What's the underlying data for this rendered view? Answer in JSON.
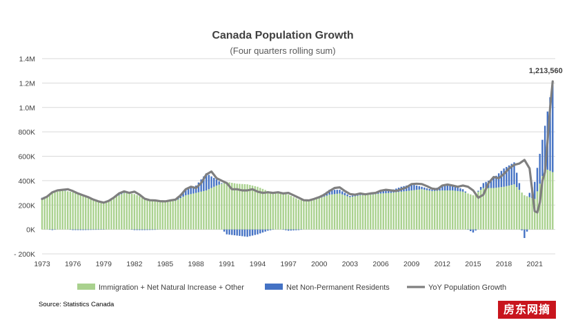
{
  "colors": {
    "immigration": "#a9d18e",
    "npr": "#4472c4",
    "yoy": "#7f7f7f",
    "grid": "#d9d9d9",
    "watermark_bg": "#c8151d"
  },
  "source": "Source: Statistics Canada",
  "watermark": "房东网摘",
  "chart_data": {
    "type": "bar",
    "title": "Canada Population Growth",
    "subtitle": "(Four quarters rolling sum)",
    "ylim": [
      -200000,
      1400000
    ],
    "yticks": [
      -200000,
      0,
      200000,
      400000,
      600000,
      800000,
      1000000,
      1200000,
      1400000
    ],
    "ytick_labels": [
      "- 200K",
      "0K",
      "200K",
      "400K",
      "600K",
      "800K",
      "1.0M",
      "1.2M",
      "1.4M"
    ],
    "xlim": [
      1973,
      2023
    ],
    "xticks": [
      "1973",
      "1976",
      "1979",
      "1982",
      "1985",
      "1988",
      "1991",
      "1994",
      "1997",
      "2000",
      "2003",
      "2006",
      "2009",
      "2012",
      "2015",
      "2018",
      "2021"
    ],
    "grid": "horizontal",
    "legend_position": "bottom",
    "annotation": {
      "x": 2022.75,
      "y": 1213560,
      "label": "1,213,560"
    },
    "series": [
      {
        "name": "Immigration + Net Natural Increase + Other",
        "kind": "bar",
        "points": [
          [
            1973,
            255000
          ],
          [
            1974,
            300000
          ],
          [
            1975,
            320000
          ],
          [
            1976,
            305000
          ],
          [
            1977,
            280000
          ],
          [
            1978,
            240000
          ],
          [
            1979,
            225000
          ],
          [
            1980,
            260000
          ],
          [
            1981,
            300000
          ],
          [
            1982,
            290000
          ],
          [
            1983,
            255000
          ],
          [
            1984,
            240000
          ],
          [
            1985,
            230000
          ],
          [
            1986,
            235000
          ],
          [
            1987,
            280000
          ],
          [
            1988,
            300000
          ],
          [
            1989,
            320000
          ],
          [
            1990,
            360000
          ],
          [
            1991,
            390000
          ],
          [
            1992,
            375000
          ],
          [
            1993,
            370000
          ],
          [
            1994,
            350000
          ],
          [
            1995,
            315000
          ],
          [
            1996,
            300000
          ],
          [
            1997,
            285000
          ],
          [
            1998,
            245000
          ],
          [
            1999,
            235000
          ],
          [
            2000,
            255000
          ],
          [
            2001,
            285000
          ],
          [
            2002,
            295000
          ],
          [
            2003,
            265000
          ],
          [
            2004,
            280000
          ],
          [
            2005,
            285000
          ],
          [
            2006,
            295000
          ],
          [
            2007,
            300000
          ],
          [
            2008,
            310000
          ],
          [
            2009,
            320000
          ],
          [
            2010,
            330000
          ],
          [
            2011,
            315000
          ],
          [
            2012,
            320000
          ],
          [
            2013,
            320000
          ],
          [
            2014,
            310000
          ],
          [
            2015,
            280000
          ],
          [
            2016,
            340000
          ],
          [
            2017,
            340000
          ],
          [
            2018,
            350000
          ],
          [
            2019,
            370000
          ],
          [
            2020,
            280000
          ],
          [
            2021,
            250000
          ],
          [
            2022,
            500000
          ],
          [
            2022.75,
            470000
          ]
        ]
      },
      {
        "name": "Net Non-Permanent Residents",
        "kind": "bar",
        "points": [
          [
            1973,
            5000
          ],
          [
            1974,
            -5000
          ],
          [
            1975,
            5000
          ],
          [
            1976,
            -5000
          ],
          [
            1977,
            -5000
          ],
          [
            1978,
            -3000
          ],
          [
            1979,
            -2000
          ],
          [
            1980,
            5000
          ],
          [
            1981,
            5000
          ],
          [
            1982,
            -5000
          ],
          [
            1983,
            -5000
          ],
          [
            1984,
            -3000
          ],
          [
            1985,
            5000
          ],
          [
            1986,
            15000
          ],
          [
            1987,
            50000
          ],
          [
            1988,
            60000
          ],
          [
            1989,
            140000
          ],
          [
            1990,
            50000
          ],
          [
            1991,
            -40000
          ],
          [
            1992,
            -50000
          ],
          [
            1993,
            -60000
          ],
          [
            1994,
            -40000
          ],
          [
            1995,
            -10000
          ],
          [
            1996,
            5000
          ],
          [
            1997,
            -10000
          ],
          [
            1998,
            -5000
          ],
          [
            1999,
            5000
          ],
          [
            2000,
            10000
          ],
          [
            2001,
            40000
          ],
          [
            2002,
            30000
          ],
          [
            2003,
            10000
          ],
          [
            2004,
            5000
          ],
          [
            2005,
            5000
          ],
          [
            2006,
            20000
          ],
          [
            2007,
            20000
          ],
          [
            2008,
            40000
          ],
          [
            2009,
            50000
          ],
          [
            2010,
            20000
          ],
          [
            2011,
            10000
          ],
          [
            2012,
            40000
          ],
          [
            2013,
            40000
          ],
          [
            2014,
            20000
          ],
          [
            2015,
            -25000
          ],
          [
            2016,
            40000
          ],
          [
            2017,
            80000
          ],
          [
            2018,
            150000
          ],
          [
            2019,
            180000
          ],
          [
            2020,
            -70000
          ],
          [
            2021,
            140000
          ],
          [
            2022,
            350000
          ],
          [
            2022.75,
            730000
          ]
        ]
      },
      {
        "name": "YoY Population Growth",
        "kind": "line",
        "points": [
          [
            1973,
            250000
          ],
          [
            1973.5,
            270000
          ],
          [
            1974,
            305000
          ],
          [
            1974.5,
            320000
          ],
          [
            1975,
            325000
          ],
          [
            1975.5,
            330000
          ],
          [
            1976,
            315000
          ],
          [
            1976.5,
            295000
          ],
          [
            1977,
            280000
          ],
          [
            1977.5,
            265000
          ],
          [
            1978,
            245000
          ],
          [
            1978.5,
            230000
          ],
          [
            1979,
            220000
          ],
          [
            1979.5,
            235000
          ],
          [
            1980,
            262000
          ],
          [
            1980.5,
            295000
          ],
          [
            1981,
            312000
          ],
          [
            1981.5,
            300000
          ],
          [
            1982,
            310000
          ],
          [
            1982.5,
            285000
          ],
          [
            1983,
            252000
          ],
          [
            1983.5,
            240000
          ],
          [
            1984,
            238000
          ],
          [
            1984.5,
            232000
          ],
          [
            1985,
            230000
          ],
          [
            1985.5,
            238000
          ],
          [
            1986,
            245000
          ],
          [
            1986.5,
            280000
          ],
          [
            1987,
            330000
          ],
          [
            1987.5,
            350000
          ],
          [
            1988,
            340000
          ],
          [
            1988.5,
            380000
          ],
          [
            1989,
            450000
          ],
          [
            1989.5,
            475000
          ],
          [
            1990,
            420000
          ],
          [
            1990.5,
            400000
          ],
          [
            1991,
            380000
          ],
          [
            1991.5,
            330000
          ],
          [
            1992,
            330000
          ],
          [
            1992.5,
            320000
          ],
          [
            1993,
            320000
          ],
          [
            1993.5,
            330000
          ],
          [
            1994,
            310000
          ],
          [
            1994.5,
            300000
          ],
          [
            1995,
            305000
          ],
          [
            1995.5,
            300000
          ],
          [
            1996,
            305000
          ],
          [
            1996.5,
            295000
          ],
          [
            1997,
            300000
          ],
          [
            1997.5,
            280000
          ],
          [
            1998,
            260000
          ],
          [
            1998.5,
            240000
          ],
          [
            1999,
            238000
          ],
          [
            1999.5,
            250000
          ],
          [
            2000,
            265000
          ],
          [
            2000.5,
            285000
          ],
          [
            2001,
            315000
          ],
          [
            2001.5,
            340000
          ],
          [
            2002,
            345000
          ],
          [
            2002.5,
            315000
          ],
          [
            2003,
            290000
          ],
          [
            2003.5,
            285000
          ],
          [
            2004,
            295000
          ],
          [
            2004.5,
            288000
          ],
          [
            2005,
            295000
          ],
          [
            2005.5,
            300000
          ],
          [
            2006,
            318000
          ],
          [
            2006.5,
            325000
          ],
          [
            2007,
            320000
          ],
          [
            2007.5,
            315000
          ],
          [
            2008,
            330000
          ],
          [
            2008.5,
            345000
          ],
          [
            2009,
            372000
          ],
          [
            2009.5,
            375000
          ],
          [
            2010,
            372000
          ],
          [
            2010.5,
            355000
          ],
          [
            2011,
            335000
          ],
          [
            2011.5,
            330000
          ],
          [
            2012,
            360000
          ],
          [
            2012.5,
            368000
          ],
          [
            2013,
            360000
          ],
          [
            2013.5,
            350000
          ],
          [
            2014,
            360000
          ],
          [
            2014.5,
            350000
          ],
          [
            2015,
            320000
          ],
          [
            2015.5,
            260000
          ],
          [
            2016,
            285000
          ],
          [
            2016.5,
            380000
          ],
          [
            2017,
            430000
          ],
          [
            2017.5,
            420000
          ],
          [
            2018,
            455000
          ],
          [
            2018.5,
            500000
          ],
          [
            2019,
            530000
          ],
          [
            2019.5,
            540000
          ],
          [
            2020,
            570000
          ],
          [
            2020.5,
            500000
          ],
          [
            2021,
            150000
          ],
          [
            2021.25,
            140000
          ],
          [
            2021.5,
            220000
          ],
          [
            2021.75,
            400000
          ],
          [
            2022,
            470000
          ],
          [
            2022.25,
            720000
          ],
          [
            2022.5,
            1000000
          ],
          [
            2022.75,
            1213560
          ]
        ]
      }
    ]
  }
}
